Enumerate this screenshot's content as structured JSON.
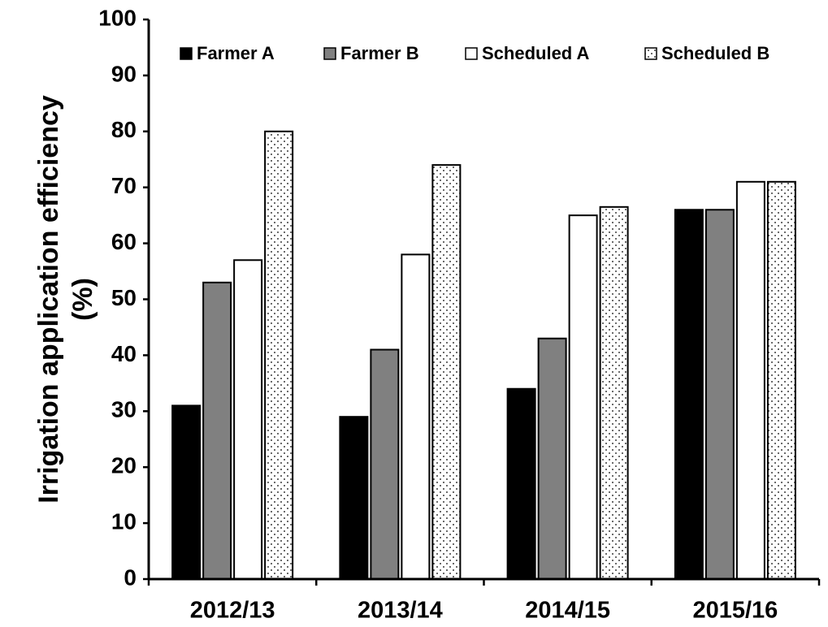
{
  "chart_data": {
    "type": "bar",
    "title": "",
    "xlabel": "",
    "ylabel": [
      "Irrigation application efficiency",
      "(%)"
    ],
    "categories": [
      "2012/13",
      "2013/14",
      "2014/15",
      "2015/16"
    ],
    "ylim": [
      0,
      100
    ],
    "yticks": [
      0,
      10,
      20,
      30,
      40,
      50,
      60,
      70,
      80,
      90,
      100
    ],
    "grid": false,
    "legend_position": "top",
    "series": [
      {
        "name": "Farmer A",
        "values": [
          31,
          29,
          34,
          66
        ],
        "fill": "#000000",
        "pattern": "solid"
      },
      {
        "name": "Farmer B",
        "values": [
          53,
          41,
          43,
          66
        ],
        "fill": "#808080",
        "pattern": "solid"
      },
      {
        "name": "Scheduled A",
        "values": [
          57,
          58,
          65,
          71
        ],
        "fill": "#ffffff",
        "pattern": "solid"
      },
      {
        "name": "Scheduled B",
        "values": [
          80,
          74,
          66.5,
          71
        ],
        "fill": "#ffffff",
        "pattern": "dotted"
      }
    ]
  }
}
